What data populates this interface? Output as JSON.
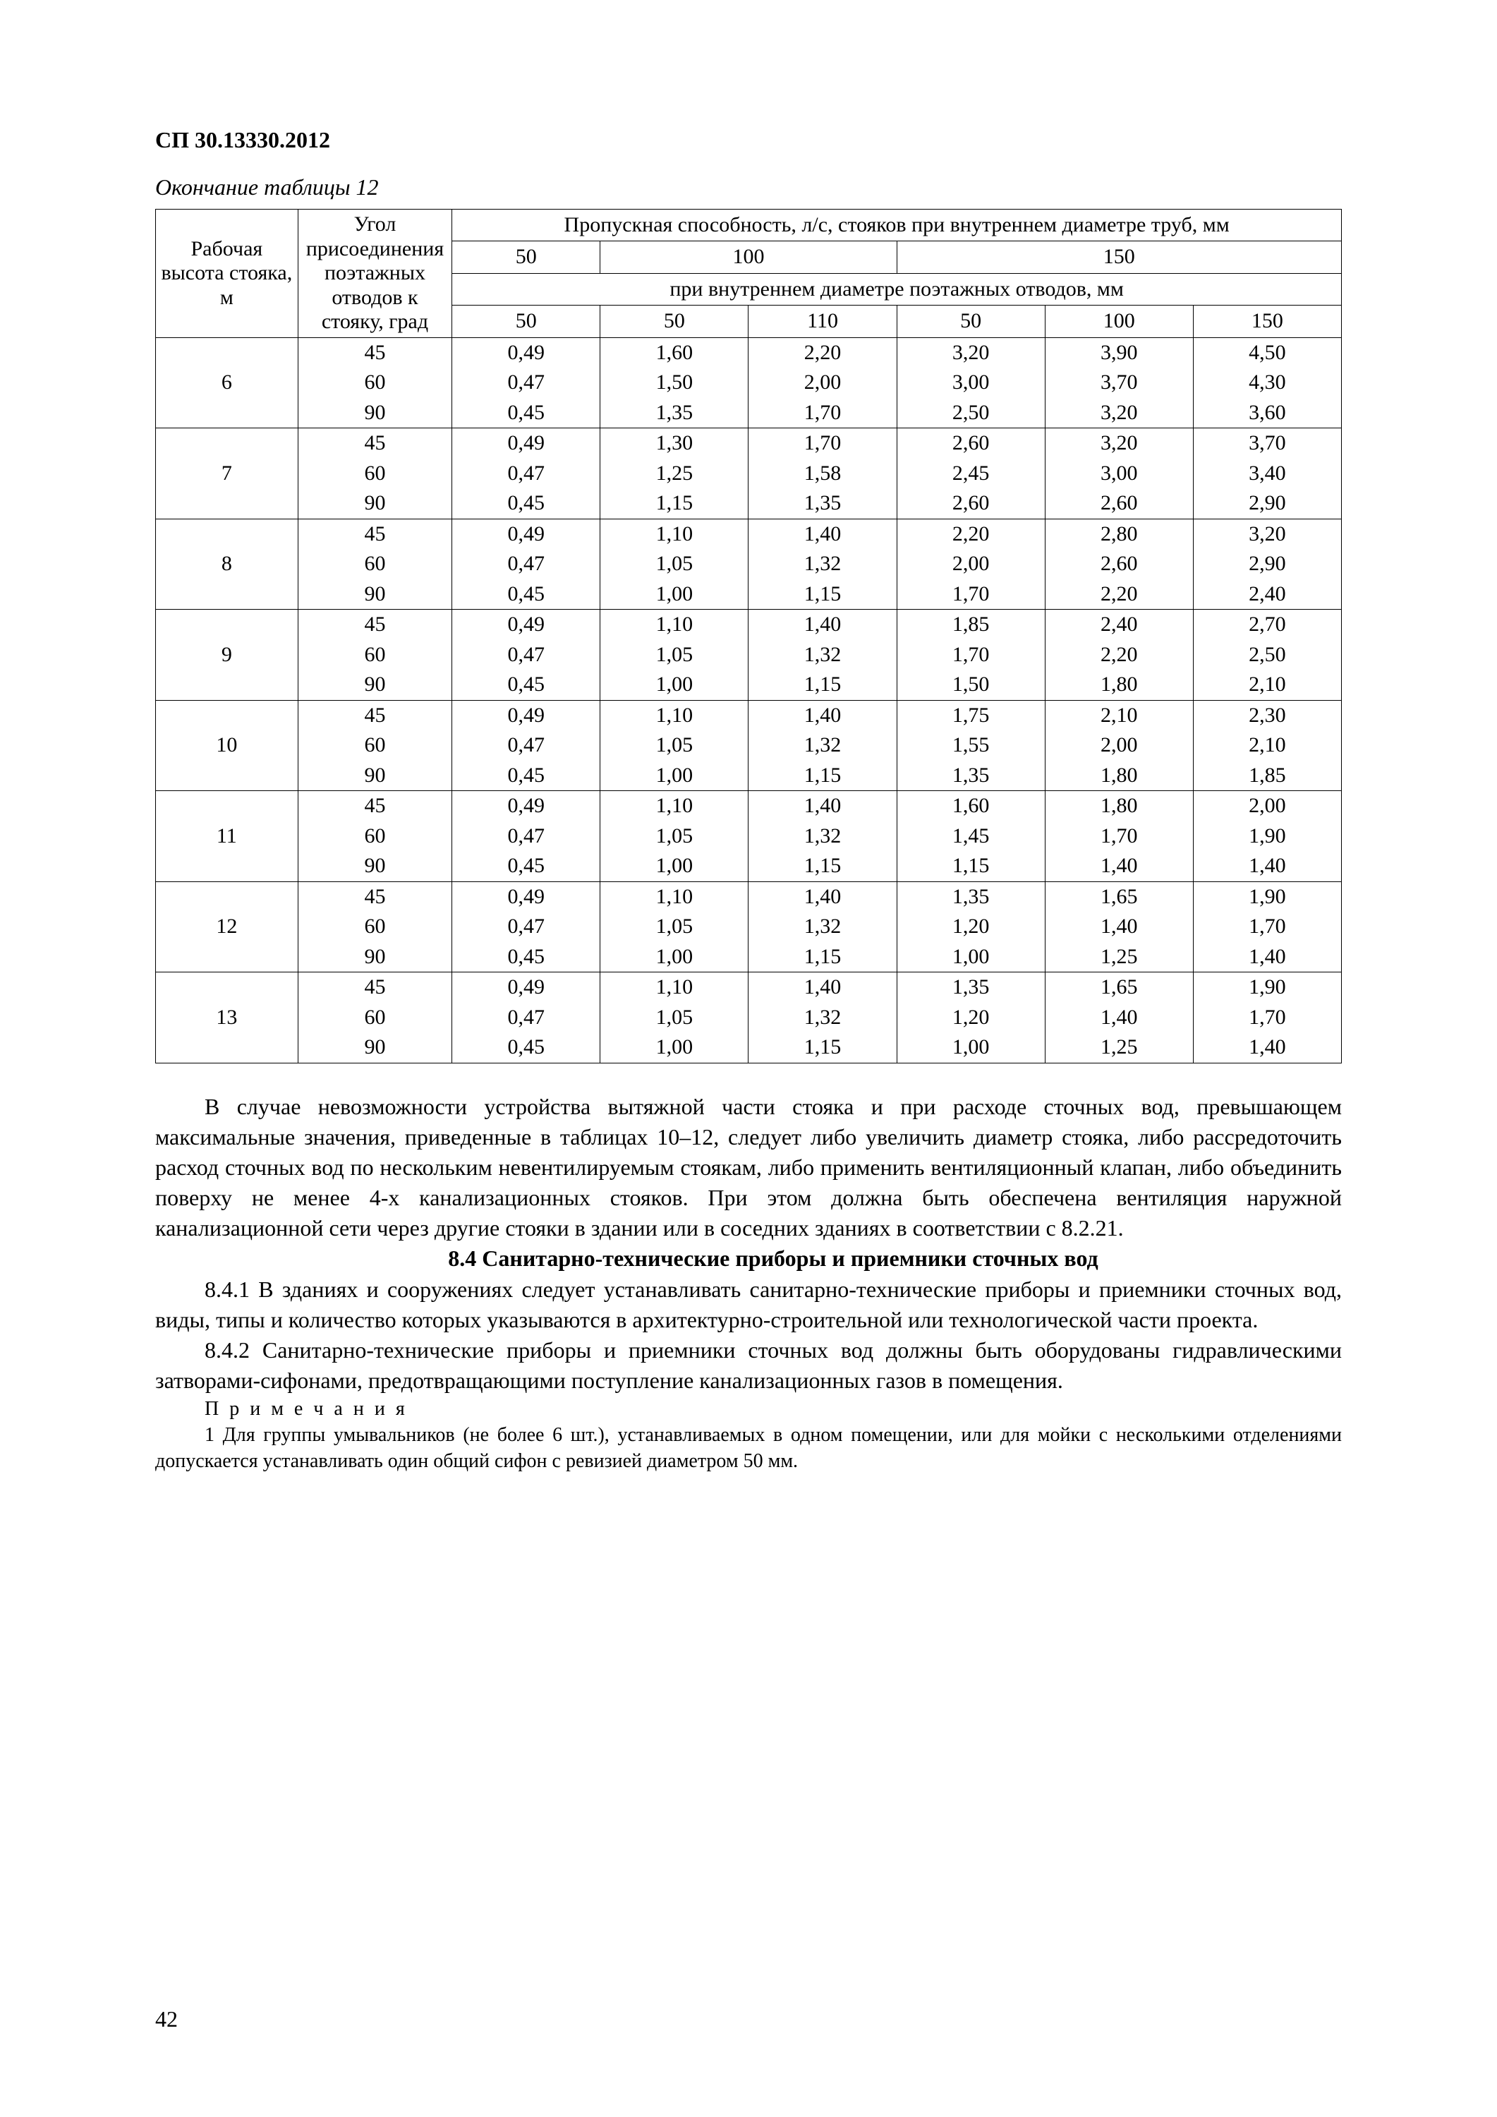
{
  "doc_code": "СП 30.13330.2012",
  "table_caption": "Окончание таблицы 12",
  "header": {
    "col1": "Рабочая высота стояка, м",
    "col2": "Угол присоедине­ния поэтажных отводов к стояку, град",
    "span_title": "Пропускная способность, л/с, стояков при внутреннем диаметре труб, мм",
    "pipe_diams": [
      "50",
      "100",
      "150"
    ],
    "sub_title": "при внутреннем диаметре поэтажных отводов, мм",
    "sub_diams": [
      "50",
      "50",
      "110",
      "50",
      "100",
      "150"
    ]
  },
  "groups": [
    {
      "h": "6",
      "rows": [
        {
          "a": "45",
          "v": [
            "0,49",
            "1,60",
            "2,20",
            "3,20",
            "3,90",
            "4,50"
          ]
        },
        {
          "a": "60",
          "v": [
            "0,47",
            "1,50",
            "2,00",
            "3,00",
            "3,70",
            "4,30"
          ]
        },
        {
          "a": "90",
          "v": [
            "0,45",
            "1,35",
            "1,70",
            "2,50",
            "3,20",
            "3,60"
          ]
        }
      ]
    },
    {
      "h": "7",
      "rows": [
        {
          "a": "45",
          "v": [
            "0,49",
            "1,30",
            "1,70",
            "2,60",
            "3,20",
            "3,70"
          ]
        },
        {
          "a": "60",
          "v": [
            "0,47",
            "1,25",
            "1,58",
            "2,45",
            "3,00",
            "3,40"
          ]
        },
        {
          "a": "90",
          "v": [
            "0,45",
            "1,15",
            "1,35",
            "2,60",
            "2,60",
            "2,90"
          ]
        }
      ]
    },
    {
      "h": "8",
      "rows": [
        {
          "a": "45",
          "v": [
            "0,49",
            "1,10",
            "1,40",
            "2,20",
            "2,80",
            "3,20"
          ]
        },
        {
          "a": "60",
          "v": [
            "0,47",
            "1,05",
            "1,32",
            "2,00",
            "2,60",
            "2,90"
          ]
        },
        {
          "a": "90",
          "v": [
            "0,45",
            "1,00",
            "1,15",
            "1,70",
            "2,20",
            "2,40"
          ]
        }
      ]
    },
    {
      "h": "9",
      "rows": [
        {
          "a": "45",
          "v": [
            "0,49",
            "1,10",
            "1,40",
            "1,85",
            "2,40",
            "2,70"
          ]
        },
        {
          "a": "60",
          "v": [
            "0,47",
            "1,05",
            "1,32",
            "1,70",
            "2,20",
            "2,50"
          ]
        },
        {
          "a": "90",
          "v": [
            "0,45",
            "1,00",
            "1,15",
            "1,50",
            "1,80",
            "2,10"
          ]
        }
      ]
    },
    {
      "h": "10",
      "rows": [
        {
          "a": "45",
          "v": [
            "0,49",
            "1,10",
            "1,40",
            "1,75",
            "2,10",
            "2,30"
          ]
        },
        {
          "a": "60",
          "v": [
            "0,47",
            "1,05",
            "1,32",
            "1,55",
            "2,00",
            "2,10"
          ]
        },
        {
          "a": "90",
          "v": [
            "0,45",
            "1,00",
            "1,15",
            "1,35",
            "1,80",
            "1,85"
          ]
        }
      ]
    },
    {
      "h": "11",
      "rows": [
        {
          "a": "45",
          "v": [
            "0,49",
            "1,10",
            "1,40",
            "1,60",
            "1,80",
            "2,00"
          ]
        },
        {
          "a": "60",
          "v": [
            "0,47",
            "1,05",
            "1,32",
            "1,45",
            "1,70",
            "1,90"
          ]
        },
        {
          "a": "90",
          "v": [
            "0,45",
            "1,00",
            "1,15",
            "1,15",
            "1,40",
            "1,40"
          ]
        }
      ]
    },
    {
      "h": "12",
      "rows": [
        {
          "a": "45",
          "v": [
            "0,49",
            "1,10",
            "1,40",
            "1,35",
            "1,65",
            "1,90"
          ]
        },
        {
          "a": "60",
          "v": [
            "0,47",
            "1,05",
            "1,32",
            "1,20",
            "1,40",
            "1,70"
          ]
        },
        {
          "a": "90",
          "v": [
            "0,45",
            "1,00",
            "1,15",
            "1,00",
            "1,25",
            "1,40"
          ]
        }
      ]
    },
    {
      "h": "13",
      "rows": [
        {
          "a": "45",
          "v": [
            "0,49",
            "1,10",
            "1,40",
            "1,35",
            "1,65",
            "1,90"
          ]
        },
        {
          "a": "60",
          "v": [
            "0,47",
            "1,05",
            "1,32",
            "1,20",
            "1,40",
            "1,70"
          ]
        },
        {
          "a": "90",
          "v": [
            "0,45",
            "1,00",
            "1,15",
            "1,00",
            "1,25",
            "1,40"
          ]
        }
      ]
    }
  ],
  "para1": "В случае невозможности устройства вытяжной части стояка и при расходе сточных вод, превышающем максимальные значения, приведенные в таблицах 10–12, следует либо увеличить диаметр стояка, либо рассредоточить расход сточных вод по нескольким невентилируемым стоякам, либо применить вентиляционный клапан, либо объединить поверху не менее 4-х канализационных стояков. При этом должна быть обеспечена вентиляция наружной канализационной сети через другие стояки в здании или в соседних зданиях в соответствии с 8.2.21.",
  "section_title": "8.4  Санитарно-технические приборы и приемники сточных вод",
  "para2": "8.4.1 В зданиях и сооружениях следует устанавливать санитарно-технические приборы и приемники сточных вод, виды, типы и количество которых указываются в архитектурно-строительной или технологической части проекта.",
  "para3": "8.4.2 Санитарно-технические приборы и приемники сточных вод должны быть оборудованы гидравлическими затворами-сифонами, предотвращающими поступление канализационных газов в помещения.",
  "notes_header": "П р и м е ч а н и я",
  "note1": "1 Для группы умывальников (не более 6 шт.), устанавливаемых в одном помещении, или для мойки с несколькими отделениями допускается устанавливать один общий сифон с ревизией диаметром 50 мм.",
  "page_number": "42",
  "col_widths_pct": [
    12,
    13,
    12.5,
    12.5,
    12.5,
    12.5,
    12.5,
    12.5
  ]
}
